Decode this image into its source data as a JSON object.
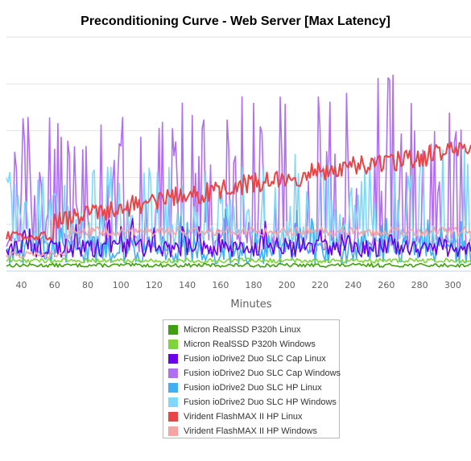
{
  "chart_data": {
    "type": "line",
    "title": "Preconditioning Curve - Web Server [Max Latency]",
    "xlabel": "Minutes",
    "ylabel": "",
    "x_ticks": [
      40,
      60,
      80,
      100,
      120,
      140,
      160,
      180,
      200,
      220,
      240,
      260,
      280,
      300
    ],
    "xlim": [
      31,
      311
    ],
    "ylim": [
      0,
      100
    ],
    "y_axis_labels_visible": false,
    "grid": "horizontal",
    "legend_position": "bottom",
    "series": [
      {
        "name": "Micron RealSSD P320h Linux",
        "color": "#3f9f0f",
        "style": "flat",
        "base": 2.5,
        "noise": 0.8
      },
      {
        "name": "Micron RealSSD P320h Windows",
        "color": "#7fd43a",
        "style": "flat",
        "base": 4.5,
        "noise": 1.0
      },
      {
        "name": "Fusion ioDrive2 Duo SLC Cap Linux",
        "color": "#6b00ea",
        "style": "low-spiky",
        "base": 10,
        "noise": 4
      },
      {
        "name": "Fusion ioDrive2 Duo SLC Cap Windows",
        "color": "#b06ef2",
        "style": "spiky",
        "base": 12,
        "peak": 88
      },
      {
        "name": "Fusion ioDrive2 Duo SLC HP Linux",
        "color": "#3fb1f2",
        "style": "low-spiky",
        "base": 9,
        "noise": 6
      },
      {
        "name": "Fusion ioDrive2 Duo SLC HP Windows",
        "color": "#7fd8fb",
        "style": "spiky",
        "base": 14,
        "peak": 56
      },
      {
        "name": "Virident FlashMAX II HP Linux",
        "color": "#ea4444",
        "style": "trend",
        "start": 15,
        "end": 52
      },
      {
        "name": "Virident FlashMAX II HP Windows",
        "color": "#f5a3a3",
        "style": "band",
        "base": 17,
        "noise": 2
      }
    ]
  }
}
